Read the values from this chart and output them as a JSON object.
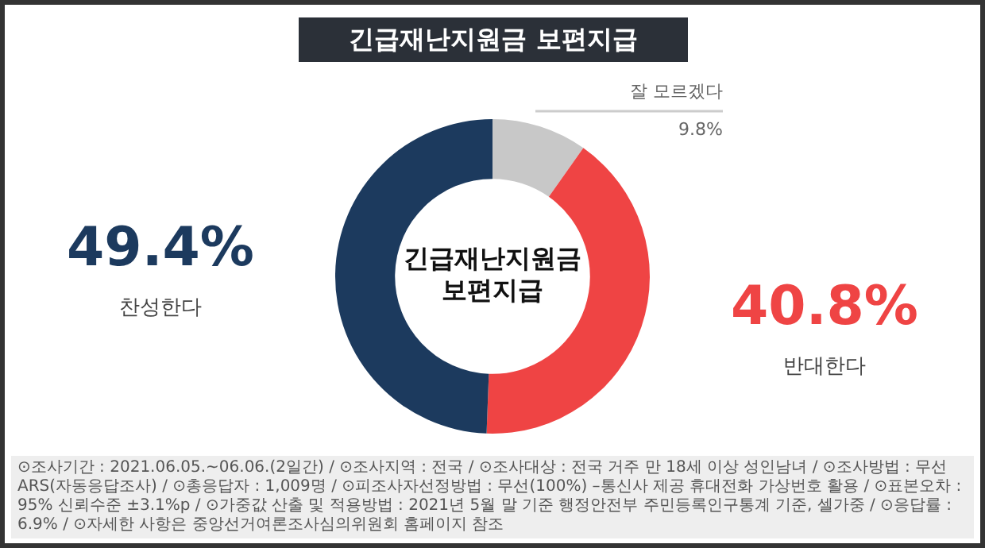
{
  "chart_data": {
    "type": "donut",
    "title": "긴급재난지원금 보편지급",
    "categories": [
      "잘 모르겠다",
      "반대한다",
      "찬성한다"
    ],
    "values": [
      9.8,
      40.8,
      49.4
    ],
    "colors": [
      "#c8c8c8",
      "#ef4444",
      "#1c3a5e"
    ],
    "value_labels": [
      "9.8%",
      "40.8%",
      "49.4%"
    ],
    "legend": false,
    "annotations": [
      "긴급재난지원금\n보편지급",
      "⊙조사기간 : 2021.06.05.~06.06.(2일간) / ⊙조사지역 : 전국 / ⊙조사대상 : 전국 거주 만 18세 이상 성인남녀 / ⊙조사방법 : 무선 ARS(자동응답조사) / ⊙총응답자 : 1,009명 / ⊙피조사자선정방법 : 무선(100%) –통신사 제공 휴대전화 가상번호 활용 / ⊙표본오차 : 95% 신뢰수준 ±3.1%p / ⊙가중값 산출 및 적용방법 : 2021년 5월 말 기준 행정안전부 주민등록인구통계 기준, 셀가중 / ⊙응답률 : 6.9% / ⊙자세한 사항은 중앙선거여론조사심의위원회 홈페이지 참조"
    ]
  }
}
